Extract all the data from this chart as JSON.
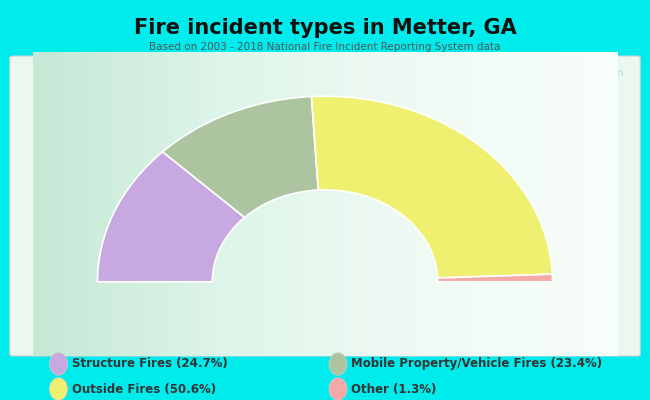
{
  "title": "Fire incident types in Metter, GA",
  "subtitle": "Based on 2003 - 2018 National Fire Incident Reporting System data",
  "bg_color": "#00ECEC",
  "chart_bg_gradient_left": "#c8ecd8",
  "chart_bg_gradient_right": "#e8f8f0",
  "categories": [
    "Structure Fires",
    "Mobile Property/Vehicle Fires",
    "Outside Fires",
    "Other"
  ],
  "values": [
    24.7,
    23.4,
    50.6,
    1.3
  ],
  "colors": [
    "#c8a8e0",
    "#adc4a0",
    "#f0f070",
    "#f4a8a8"
  ],
  "legend_colors": [
    "#c8a8e0",
    "#f0f070",
    "#adc4a0",
    "#f4a8a8"
  ],
  "legend_labels": [
    "Structure Fires (24.7%)",
    "Outside Fires (50.6%)",
    "Mobile Property/Vehicle Fires (23.4%)",
    "Other (1.3%)"
  ],
  "watermark": "City-Data.com",
  "outer_r": 1.05,
  "inner_r": 0.52
}
